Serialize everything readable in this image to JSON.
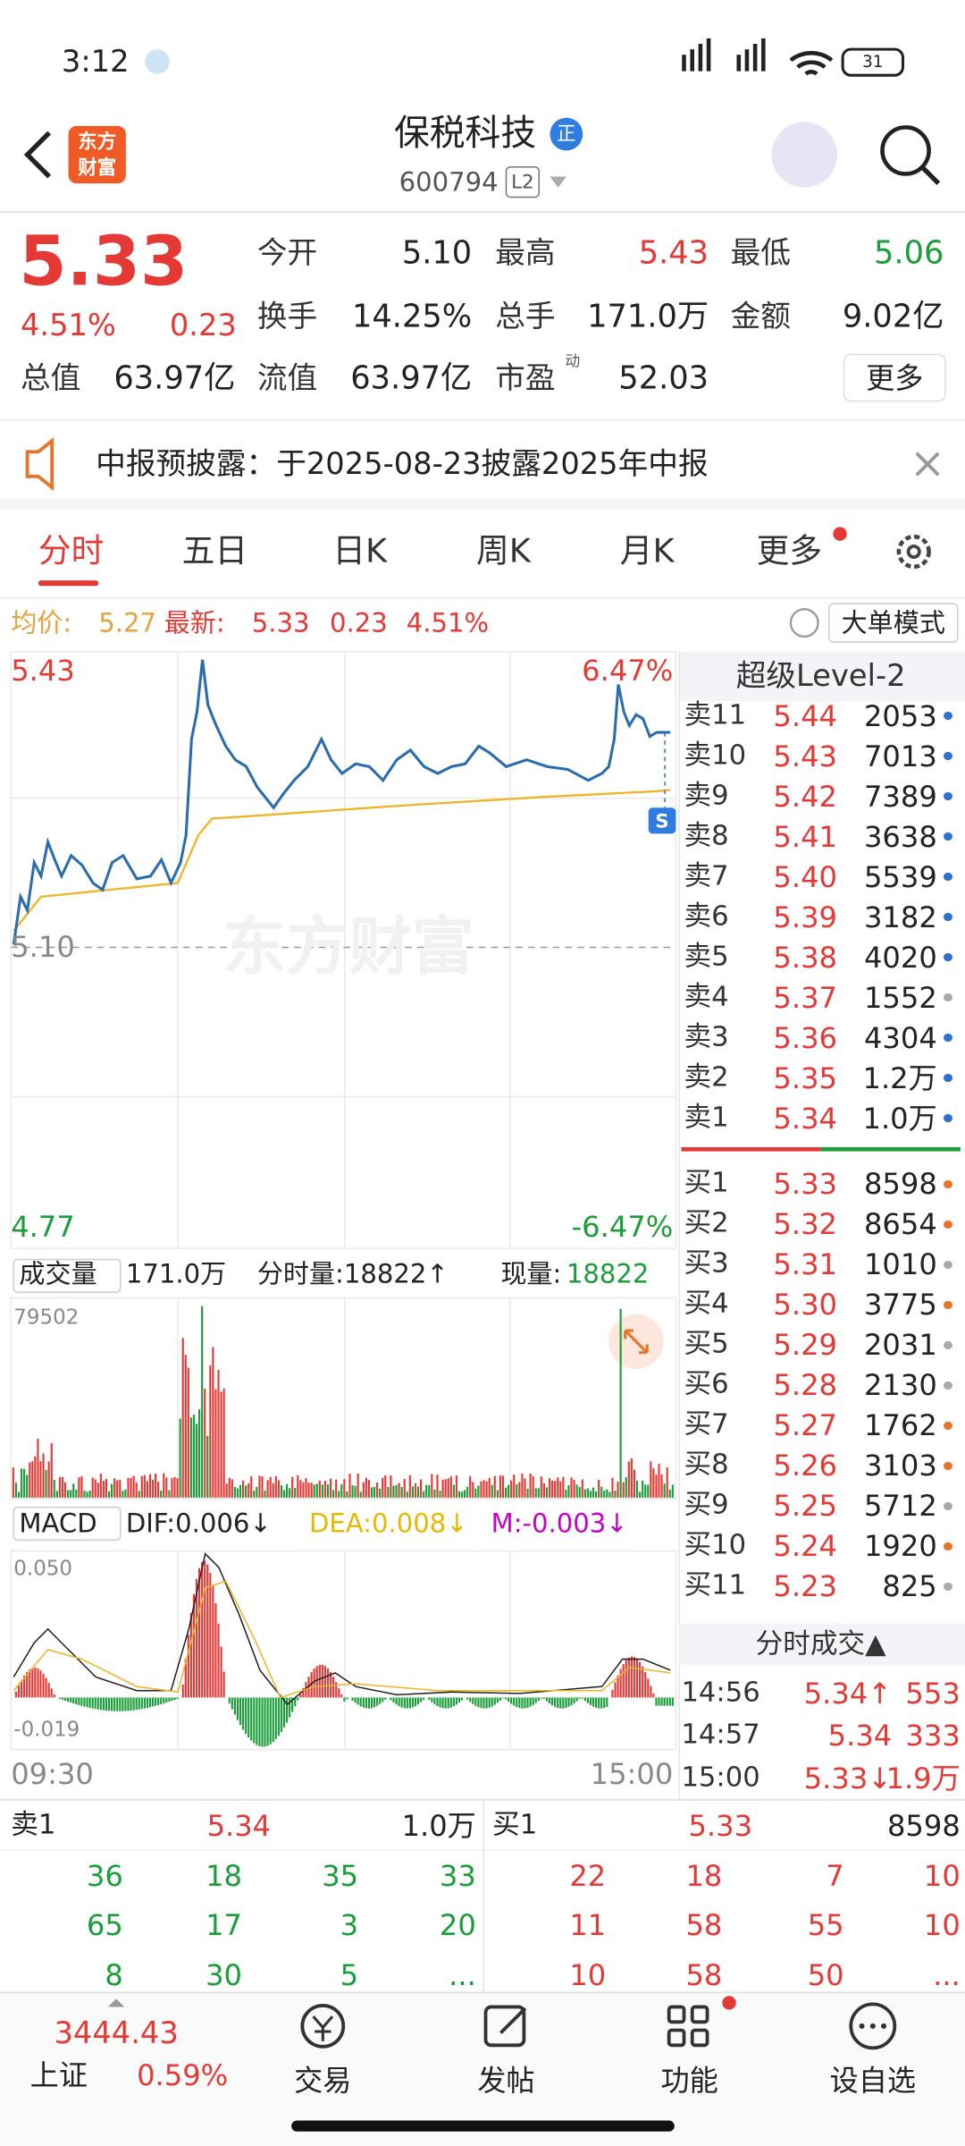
{
  "status": {
    "time": "3:12",
    "battery": "31"
  },
  "header": {
    "title": "保税科技",
    "verified": "正",
    "code": "600794",
    "level": "L2",
    "logo_top": "东方",
    "logo_bottom": "财富"
  },
  "quote": {
    "price": "5.33",
    "pct": "4.51%",
    "change": "0.23",
    "fields": [
      {
        "label": "今开",
        "value": "5.10",
        "tone": "flat"
      },
      {
        "label": "最高",
        "value": "5.43",
        "tone": "up"
      },
      {
        "label": "最低",
        "value": "5.06",
        "tone": "down"
      },
      {
        "label": "换手",
        "value": "14.25%",
        "tone": "flat"
      },
      {
        "label": "总手",
        "value": "171.0万",
        "tone": "flat"
      },
      {
        "label": "金额",
        "value": "9.02亿",
        "tone": "flat"
      },
      {
        "label": "总值",
        "value": "63.97亿",
        "tone": "flat"
      },
      {
        "label": "流值",
        "value": "63.97亿",
        "tone": "flat"
      },
      {
        "label": "市盈",
        "value": "52.03",
        "tone": "flat"
      }
    ],
    "pe_note": "动",
    "more": "更多"
  },
  "notice": "中报预披露：于2025-08-23披露2025年中报",
  "tabs": [
    "分时",
    "五日",
    "日K",
    "周K",
    "月K",
    "更多"
  ],
  "summary": {
    "avg_label": "均价:",
    "avg": "5.27",
    "last_label": "最新:",
    "last": "5.33",
    "change": "0.23",
    "pct": "4.51%",
    "mode": "大单模式"
  },
  "chart": {
    "high": "5.43",
    "high_pct": "6.47%",
    "base": "5.10",
    "low": "4.77",
    "low_pct": "-6.47%",
    "watermark": "东方财富",
    "marker": "S"
  },
  "volume": {
    "label": "成交量",
    "total": "171.0万",
    "tick": "分时量:18822↑",
    "now_label": "现量:",
    "now": "18822",
    "max": "79502"
  },
  "macd": {
    "label": "MACD",
    "dif": "DIF:0.006↓",
    "dea": "DEA:0.008↓",
    "m": "M:-0.003↓",
    "top": "0.050",
    "bottom": "-0.019",
    "start": "09:30",
    "end": "15:00"
  },
  "level2": {
    "title": "超级Level-2",
    "asks": [
      [
        "卖11",
        "5.44",
        "2053",
        "#2f6fd0"
      ],
      [
        "卖10",
        "5.43",
        "7013",
        "#2f6fd0"
      ],
      [
        "卖9",
        "5.42",
        "7389",
        "#2f6fd0"
      ],
      [
        "卖8",
        "5.41",
        "3638",
        "#2f6fd0"
      ],
      [
        "卖7",
        "5.40",
        "5539",
        "#2f6fd0"
      ],
      [
        "卖6",
        "5.39",
        "3182",
        "#2f6fd0"
      ],
      [
        "卖5",
        "5.38",
        "4020",
        "#2f6fd0"
      ],
      [
        "卖4",
        "5.37",
        "1552",
        "#aaaaaa"
      ],
      [
        "卖3",
        "5.36",
        "4304",
        "#2f6fd0"
      ],
      [
        "卖2",
        "5.35",
        "1.2万",
        "#2f6fd0"
      ],
      [
        "卖1",
        "5.34",
        "1.0万",
        "#2f6fd0"
      ]
    ],
    "bids": [
      [
        "买1",
        "5.33",
        "8598",
        "#e8742a"
      ],
      [
        "买2",
        "5.32",
        "8654",
        "#e8742a"
      ],
      [
        "买3",
        "5.31",
        "1010",
        "#aaaaaa"
      ],
      [
        "买4",
        "5.30",
        "3775",
        "#e8742a"
      ],
      [
        "买5",
        "5.29",
        "2031",
        "#aaaaaa"
      ],
      [
        "买6",
        "5.28",
        "2130",
        "#aaaaaa"
      ],
      [
        "买7",
        "5.27",
        "1762",
        "#e8742a"
      ],
      [
        "买8",
        "5.26",
        "3103",
        "#e8742a"
      ],
      [
        "买9",
        "5.25",
        "5712",
        "#aaaaaa"
      ],
      [
        "买10",
        "5.24",
        "1920",
        "#e8742a"
      ],
      [
        "买11",
        "5.23",
        "825",
        "#aaaaaa"
      ]
    ]
  },
  "trades": {
    "title": "分时成交▲",
    "rows": [
      [
        "14:56",
        "5.34↑",
        "553"
      ],
      [
        "14:57",
        "5.34",
        "333"
      ],
      [
        "15:00",
        "5.33↓",
        "1.9万"
      ]
    ]
  },
  "book": {
    "ask_label": "卖1",
    "ask_price": "5.34",
    "ask_vol": "1.0万",
    "bid_label": "买1",
    "bid_price": "5.33",
    "bid_vol": "8598",
    "ask_queue": [
      [
        "36",
        "18",
        "35",
        "33"
      ],
      [
        "65",
        "17",
        "3",
        "20"
      ],
      [
        "8",
        "30",
        "5",
        "..."
      ]
    ],
    "bid_queue": [
      [
        "22",
        "18",
        "7",
        "10"
      ],
      [
        "11",
        "58",
        "55",
        "10"
      ],
      [
        "10",
        "58",
        "50",
        "..."
      ]
    ]
  },
  "nav": {
    "index": "3444.43",
    "index_name": "上证",
    "index_pct": "0.59%",
    "items": [
      "交易",
      "发帖",
      "功能",
      "设自选"
    ]
  }
}
